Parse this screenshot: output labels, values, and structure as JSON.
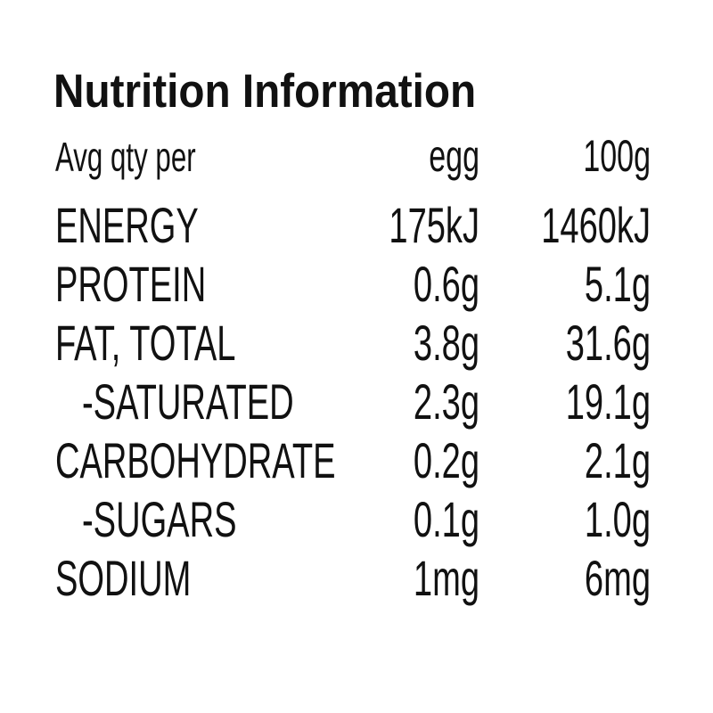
{
  "title": "Nutrition Information",
  "table": {
    "header": [
      "Avg qty per",
      "egg",
      "100g"
    ],
    "rows": [
      [
        "ENERGY",
        "175kJ",
        "1460kJ"
      ],
      [
        "PROTEIN",
        "0.6g",
        "5.1g"
      ],
      [
        "FAT, TOTAL",
        "3.8g",
        "31.6g"
      ],
      [
        "-SATURATED",
        "2.3g",
        "19.1g"
      ],
      [
        "CARBOHYDRATE",
        "0.2g",
        "2.1g"
      ],
      [
        "-SUGARS",
        "0.1g",
        "1.0g"
      ],
      [
        "SODIUM",
        "1mg",
        "6mg"
      ]
    ]
  }
}
